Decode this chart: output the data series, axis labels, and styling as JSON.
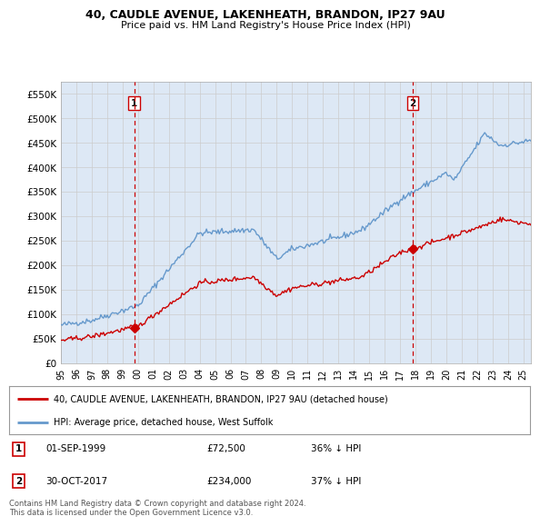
{
  "title_line1": "40, CAUDLE AVENUE, LAKENHEATH, BRANDON, IP27 9AU",
  "title_line2": "Price paid vs. HM Land Registry's House Price Index (HPI)",
  "ylabel_ticks": [
    "£0",
    "£50K",
    "£100K",
    "£150K",
    "£200K",
    "£250K",
    "£300K",
    "£350K",
    "£400K",
    "£450K",
    "£500K",
    "£550K"
  ],
  "ytick_values": [
    0,
    50000,
    100000,
    150000,
    200000,
    250000,
    300000,
    350000,
    400000,
    450000,
    500000,
    550000
  ],
  "ylim": [
    0,
    575000
  ],
  "xlim_start": 1995.0,
  "xlim_end": 2025.5,
  "hpi_color": "#6699cc",
  "price_color": "#cc0000",
  "chart_bg_color": "#dde8f5",
  "marker1_date": 1999.75,
  "marker1_price": 72500,
  "marker2_date": 2017.83,
  "marker2_price": 234000,
  "marker1_label": "1",
  "marker2_label": "2",
  "vline_color": "#cc0000",
  "legend_line1": "40, CAUDLE AVENUE, LAKENHEATH, BRANDON, IP27 9AU (detached house)",
  "legend_line2": "HPI: Average price, detached house, West Suffolk",
  "table_row1": [
    "1",
    "01-SEP-1999",
    "£72,500",
    "36% ↓ HPI"
  ],
  "table_row2": [
    "2",
    "30-OCT-2017",
    "£234,000",
    "37% ↓ HPI"
  ],
  "footnote": "Contains HM Land Registry data © Crown copyright and database right 2024.\nThis data is licensed under the Open Government Licence v3.0.",
  "background_color": "#ffffff",
  "grid_color": "#cccccc"
}
